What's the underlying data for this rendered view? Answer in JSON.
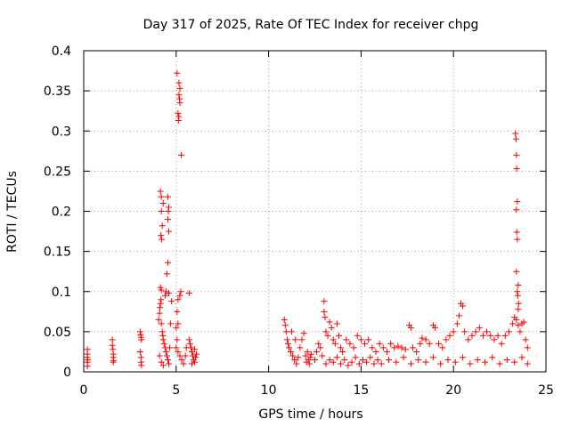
{
  "chart_data": {
    "type": "scatter",
    "title": "Day 317 of 2025, Rate Of TEC Index for receiver chpg",
    "xlabel": "GPS time / hours",
    "ylabel": "ROTI / TECUs",
    "xlim": [
      0,
      25
    ],
    "ylim": [
      0,
      0.4
    ],
    "xticks": [
      0,
      5,
      10,
      15,
      20,
      25
    ],
    "xtick_labels": [
      "0",
      "5",
      "10",
      "15",
      "20",
      "25"
    ],
    "yticks": [
      0,
      0.05,
      0.1,
      0.15,
      0.2,
      0.25,
      0.3,
      0.35,
      0.4
    ],
    "ytick_labels": [
      "0",
      "0.05",
      "0.1",
      "0.15",
      "0.2",
      "0.25",
      "0.3",
      "0.35",
      "0.4"
    ],
    "grid": true,
    "marker": "+",
    "color": "#ff0000",
    "series": [
      {
        "name": "ROTI",
        "points": [
          [
            0.2,
            0.028
          ],
          [
            0.2,
            0.022
          ],
          [
            0.2,
            0.018
          ],
          [
            0.2,
            0.012
          ],
          [
            0.2,
            0.007
          ],
          [
            0.22,
            0.015
          ],
          [
            1.55,
            0.04
          ],
          [
            1.55,
            0.033
          ],
          [
            1.58,
            0.028
          ],
          [
            1.6,
            0.022
          ],
          [
            1.6,
            0.018
          ],
          [
            1.62,
            0.014
          ],
          [
            1.6,
            0.012
          ],
          [
            3.05,
            0.05
          ],
          [
            3.08,
            0.046
          ],
          [
            3.1,
            0.043
          ],
          [
            3.12,
            0.04
          ],
          [
            3.05,
            0.025
          ],
          [
            3.1,
            0.018
          ],
          [
            3.1,
            0.012
          ],
          [
            3.12,
            0.008
          ],
          [
            4.05,
            0.065
          ],
          [
            4.1,
            0.073
          ],
          [
            4.12,
            0.08
          ],
          [
            4.15,
            0.085
          ],
          [
            4.18,
            0.09
          ],
          [
            4.2,
            0.06
          ],
          [
            4.25,
            0.05
          ],
          [
            4.28,
            0.045
          ],
          [
            4.3,
            0.04
          ],
          [
            4.35,
            0.035
          ],
          [
            4.4,
            0.03
          ],
          [
            4.45,
            0.025
          ],
          [
            4.5,
            0.02
          ],
          [
            4.55,
            0.015
          ],
          [
            4.6,
            0.01
          ],
          [
            4.1,
            0.02
          ],
          [
            4.2,
            0.012
          ],
          [
            4.3,
            0.008
          ],
          [
            4.65,
            0.03
          ],
          [
            4.7,
            0.06
          ],
          [
            4.75,
            0.088
          ],
          [
            4.15,
            0.105
          ],
          [
            4.2,
            0.102
          ],
          [
            4.45,
            0.1
          ],
          [
            4.4,
            0.095
          ],
          [
            4.6,
            0.098
          ],
          [
            4.15,
            0.225
          ],
          [
            4.2,
            0.218
          ],
          [
            4.3,
            0.21
          ],
          [
            4.2,
            0.2
          ],
          [
            4.25,
            0.182
          ],
          [
            4.18,
            0.17
          ],
          [
            4.22,
            0.165
          ],
          [
            4.55,
            0.218
          ],
          [
            4.6,
            0.205
          ],
          [
            4.58,
            0.2
          ],
          [
            4.55,
            0.19
          ],
          [
            4.6,
            0.175
          ],
          [
            4.55,
            0.136
          ],
          [
            4.5,
            0.122
          ],
          [
            5.05,
            0.372
          ],
          [
            5.15,
            0.36
          ],
          [
            5.2,
            0.353
          ],
          [
            5.15,
            0.345
          ],
          [
            5.18,
            0.34
          ],
          [
            5.2,
            0.335
          ],
          [
            5.1,
            0.322
          ],
          [
            5.15,
            0.318
          ],
          [
            5.12,
            0.313
          ],
          [
            5.28,
            0.27
          ],
          [
            5.1,
            0.09
          ],
          [
            5.2,
            0.095
          ],
          [
            5.25,
            0.1
          ],
          [
            5.05,
            0.075
          ],
          [
            5.1,
            0.06
          ],
          [
            5.0,
            0.055
          ],
          [
            5.05,
            0.04
          ],
          [
            5.0,
            0.03
          ],
          [
            5.1,
            0.025
          ],
          [
            5.2,
            0.02
          ],
          [
            5.3,
            0.015
          ],
          [
            5.4,
            0.01
          ],
          [
            5.5,
            0.02
          ],
          [
            5.55,
            0.03
          ],
          [
            5.7,
            0.098
          ],
          [
            5.7,
            0.04
          ],
          [
            5.75,
            0.035
          ],
          [
            5.8,
            0.03
          ],
          [
            5.85,
            0.025
          ],
          [
            5.9,
            0.02
          ],
          [
            5.95,
            0.015
          ],
          [
            6.0,
            0.012
          ],
          [
            6.05,
            0.018
          ],
          [
            6.1,
            0.022
          ],
          [
            5.85,
            0.01
          ],
          [
            6.0,
            0.028
          ],
          [
            10.85,
            0.065
          ],
          [
            10.9,
            0.058
          ],
          [
            10.95,
            0.05
          ],
          [
            11.0,
            0.04
          ],
          [
            11.05,
            0.035
          ],
          [
            11.1,
            0.03
          ],
          [
            11.2,
            0.025
          ],
          [
            11.3,
            0.02
          ],
          [
            11.4,
            0.015
          ],
          [
            11.5,
            0.01
          ],
          [
            11.6,
            0.018
          ],
          [
            11.7,
            0.03
          ],
          [
            11.8,
            0.04
          ],
          [
            11.9,
            0.048
          ],
          [
            11.45,
            0.04
          ],
          [
            11.25,
            0.05
          ],
          [
            12.0,
            0.02
          ],
          [
            12.1,
            0.025
          ],
          [
            12.15,
            0.015
          ],
          [
            12.2,
            0.01
          ],
          [
            12.25,
            0.018
          ],
          [
            12.3,
            0.022
          ],
          [
            12.05,
            0.012
          ],
          [
            12.5,
            0.015
          ],
          [
            12.6,
            0.025
          ],
          [
            12.7,
            0.035
          ],
          [
            12.8,
            0.03
          ],
          [
            12.9,
            0.02
          ],
          [
            13.0,
            0.088
          ],
          [
            13.0,
            0.075
          ],
          [
            13.05,
            0.068
          ],
          [
            13.1,
            0.05
          ],
          [
            13.2,
            0.045
          ],
          [
            13.3,
            0.062
          ],
          [
            13.4,
            0.055
          ],
          [
            13.5,
            0.04
          ],
          [
            13.6,
            0.035
          ],
          [
            13.7,
            0.06
          ],
          [
            13.8,
            0.045
          ],
          [
            13.9,
            0.03
          ],
          [
            14.0,
            0.025
          ],
          [
            14.2,
            0.04
          ],
          [
            14.4,
            0.035
          ],
          [
            14.6,
            0.03
          ],
          [
            14.8,
            0.045
          ],
          [
            15.0,
            0.04
          ],
          [
            15.2,
            0.035
          ],
          [
            15.4,
            0.04
          ],
          [
            15.6,
            0.03
          ],
          [
            15.8,
            0.025
          ],
          [
            13.1,
            0.01
          ],
          [
            13.3,
            0.015
          ],
          [
            13.5,
            0.012
          ],
          [
            13.7,
            0.018
          ],
          [
            13.9,
            0.01
          ],
          [
            14.1,
            0.015
          ],
          [
            14.3,
            0.008
          ],
          [
            14.5,
            0.012
          ],
          [
            14.7,
            0.018
          ],
          [
            14.9,
            0.01
          ],
          [
            15.1,
            0.015
          ],
          [
            15.3,
            0.012
          ],
          [
            15.5,
            0.018
          ],
          [
            15.7,
            0.01
          ],
          [
            15.9,
            0.015
          ],
          [
            16.0,
            0.035
          ],
          [
            16.2,
            0.03
          ],
          [
            16.4,
            0.025
          ],
          [
            16.6,
            0.035
          ],
          [
            16.8,
            0.03
          ],
          [
            17.0,
            0.032
          ],
          [
            17.2,
            0.03
          ],
          [
            17.4,
            0.028
          ],
          [
            17.6,
            0.058
          ],
          [
            17.7,
            0.055
          ],
          [
            17.8,
            0.03
          ],
          [
            18.0,
            0.025
          ],
          [
            18.2,
            0.035
          ],
          [
            18.3,
            0.042
          ],
          [
            18.5,
            0.04
          ],
          [
            18.7,
            0.035
          ],
          [
            18.9,
            0.058
          ],
          [
            19.0,
            0.055
          ],
          [
            19.2,
            0.035
          ],
          [
            19.4,
            0.03
          ],
          [
            19.6,
            0.04
          ],
          [
            19.8,
            0.045
          ],
          [
            20.0,
            0.05
          ],
          [
            20.2,
            0.06
          ],
          [
            20.3,
            0.07
          ],
          [
            20.4,
            0.085
          ],
          [
            20.5,
            0.082
          ],
          [
            20.6,
            0.05
          ],
          [
            20.8,
            0.04
          ],
          [
            21.0,
            0.045
          ],
          [
            21.2,
            0.05
          ],
          [
            21.4,
            0.055
          ],
          [
            21.6,
            0.045
          ],
          [
            21.8,
            0.05
          ],
          [
            22.0,
            0.045
          ],
          [
            22.2,
            0.04
          ],
          [
            22.4,
            0.045
          ],
          [
            22.6,
            0.035
          ],
          [
            22.8,
            0.045
          ],
          [
            23.0,
            0.05
          ],
          [
            23.2,
            0.06
          ],
          [
            23.3,
            0.068
          ],
          [
            23.4,
            0.065
          ],
          [
            23.5,
            0.058
          ],
          [
            23.6,
            0.05
          ],
          [
            23.7,
            0.06
          ],
          [
            23.8,
            0.062
          ],
          [
            23.9,
            0.04
          ],
          [
            24.0,
            0.03
          ],
          [
            16.1,
            0.01
          ],
          [
            16.5,
            0.015
          ],
          [
            16.9,
            0.012
          ],
          [
            17.3,
            0.018
          ],
          [
            17.7,
            0.01
          ],
          [
            18.1,
            0.015
          ],
          [
            18.5,
            0.012
          ],
          [
            18.9,
            0.018
          ],
          [
            19.3,
            0.01
          ],
          [
            19.7,
            0.015
          ],
          [
            20.1,
            0.012
          ],
          [
            20.5,
            0.018
          ],
          [
            20.9,
            0.01
          ],
          [
            21.3,
            0.015
          ],
          [
            21.7,
            0.012
          ],
          [
            22.1,
            0.018
          ],
          [
            22.5,
            0.01
          ],
          [
            22.9,
            0.015
          ],
          [
            23.3,
            0.012
          ],
          [
            23.7,
            0.018
          ],
          [
            24.0,
            0.01
          ],
          [
            23.35,
            0.297
          ],
          [
            23.38,
            0.29
          ],
          [
            23.4,
            0.27
          ],
          [
            23.42,
            0.253
          ],
          [
            23.45,
            0.212
          ],
          [
            23.4,
            0.202
          ],
          [
            23.42,
            0.174
          ],
          [
            23.45,
            0.165
          ],
          [
            23.4,
            0.125
          ],
          [
            23.5,
            0.108
          ],
          [
            23.45,
            0.1
          ],
          [
            23.48,
            0.095
          ],
          [
            23.52,
            0.085
          ],
          [
            23.5,
            0.078
          ]
        ]
      }
    ]
  }
}
